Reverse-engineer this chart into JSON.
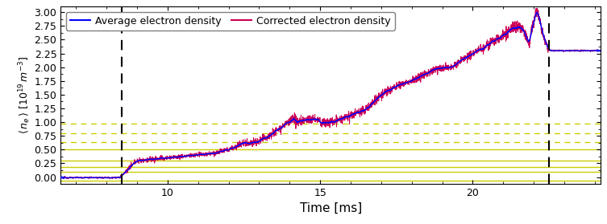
{
  "title": "",
  "xlabel": "Time [ms]",
  "xlim": [
    6.5,
    24.2
  ],
  "ylim": [
    -0.12,
    3.1
  ],
  "xticks": [
    10,
    15,
    20
  ],
  "yticks": [
    0.0,
    0.25,
    0.5,
    0.75,
    1.0,
    1.25,
    1.5,
    1.75,
    2.0,
    2.25,
    2.5,
    2.75,
    3.0
  ],
  "dashed_vlines": [
    8.5,
    22.5
  ],
  "horizontal_solid_lines": [
    -0.06,
    0.1,
    0.19,
    0.3,
    0.5
  ],
  "horizontal_dashed_lines": [
    0.64,
    0.8,
    0.97
  ],
  "hline_color": "#cccc00",
  "legend_labels": [
    "Average electron density",
    "Corrected electron density"
  ],
  "line_colors": [
    "#0000ff",
    "#cc0055"
  ],
  "avg_color": "#0000ff",
  "figsize": [
    7.53,
    2.79
  ],
  "dpi": 100
}
